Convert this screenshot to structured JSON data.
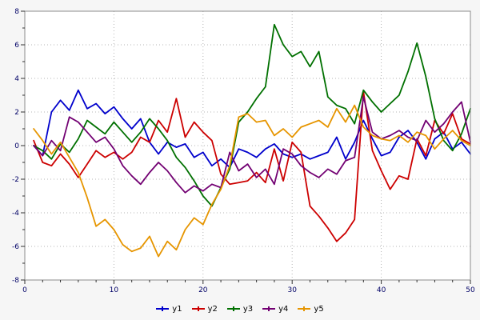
{
  "figure": {
    "background": "#f6f6f6",
    "plot_background": "#ffffff",
    "border_color": "#8c8c8c",
    "grid_color": "#b4b4b4",
    "tick_label_color": "#000066",
    "legend_text_color": "#000000"
  },
  "chart_data": {
    "type": "line",
    "title": "",
    "xlabel": "",
    "ylabel": "",
    "xlim": [
      0,
      50
    ],
    "ylim": [
      -8,
      8
    ],
    "x_ticks": [
      0,
      10,
      20,
      30,
      40,
      50
    ],
    "y_ticks": [
      8,
      6,
      4,
      2,
      0,
      -2,
      -4,
      -6,
      -8
    ],
    "x_minor_step": 2,
    "y_minor_step": 1,
    "grid": true,
    "legend_position": "bottom",
    "x": [
      1,
      2,
      3,
      4,
      5,
      6,
      7,
      8,
      9,
      10,
      11,
      12,
      13,
      14,
      15,
      16,
      17,
      18,
      19,
      20,
      21,
      22,
      23,
      24,
      25,
      26,
      27,
      28,
      29,
      30,
      31,
      32,
      33,
      34,
      35,
      36,
      37,
      38,
      39,
      40,
      41,
      42,
      43,
      44,
      45,
      46,
      47,
      48,
      49,
      50
    ],
    "series": [
      {
        "name": "y1",
        "color": "#0000cc",
        "values": [
          0.0,
          -0.6,
          2.0,
          2.7,
          2.1,
          3.3,
          2.2,
          2.5,
          1.9,
          2.3,
          1.6,
          1.0,
          1.6,
          0.2,
          -0.5,
          0.2,
          -0.1,
          0.1,
          -0.7,
          -0.4,
          -1.2,
          -0.8,
          -1.3,
          -0.2,
          -0.4,
          -0.7,
          -0.2,
          0.1,
          -0.5,
          -0.7,
          -0.5,
          -0.8,
          -0.6,
          -0.4,
          0.5,
          -0.8,
          0.2,
          1.5,
          0.4,
          -0.6,
          -0.4,
          0.5,
          0.9,
          0.2,
          -0.8,
          0.4,
          0.8,
          -0.2,
          0.2,
          -0.5
        ]
      },
      {
        "name": "y2",
        "color": "#cc0000",
        "values": [
          0.3,
          -1.0,
          -1.2,
          -0.5,
          -1.1,
          -1.9,
          -1.1,
          -0.3,
          -0.7,
          -0.4,
          -0.8,
          -0.4,
          0.5,
          0.2,
          1.5,
          0.8,
          2.8,
          0.5,
          1.4,
          0.8,
          0.3,
          -1.7,
          -2.3,
          -2.2,
          -2.1,
          -1.6,
          -2.2,
          -0.2,
          -2.1,
          0.2,
          -0.4,
          -3.6,
          -4.2,
          -4.9,
          -5.7,
          -5.2,
          -4.4,
          3.2,
          -0.3,
          -1.5,
          -2.6,
          -1.8,
          -2.0,
          0.4,
          -0.6,
          1.5,
          0.7,
          1.9,
          0.4,
          0.1
        ]
      },
      {
        "name": "y3",
        "color": "#007000",
        "values": [
          0.0,
          -0.3,
          -0.8,
          0.1,
          -0.4,
          0.4,
          1.5,
          1.1,
          0.7,
          1.4,
          0.8,
          0.2,
          0.8,
          1.6,
          1.0,
          0.3,
          -0.7,
          -1.3,
          -2.1,
          -3.0,
          -3.6,
          -2.5,
          -1.4,
          1.4,
          2.0,
          2.8,
          3.5,
          7.2,
          6.0,
          5.3,
          5.6,
          4.7,
          5.6,
          2.9,
          2.4,
          2.2,
          1.3,
          3.3,
          2.6,
          2.0,
          2.5,
          3.0,
          4.4,
          6.1,
          4.1,
          1.6,
          0.3,
          -0.3,
          0.7,
          2.2
        ]
      },
      {
        "name": "y4",
        "color": "#720072",
        "values": [
          0.0,
          -0.6,
          0.3,
          -0.3,
          1.7,
          1.4,
          0.8,
          0.2,
          0.5,
          -0.2,
          -1.2,
          -1.8,
          -2.3,
          -1.6,
          -1.0,
          -1.5,
          -2.2,
          -2.8,
          -2.4,
          -2.7,
          -2.3,
          -2.5,
          -0.4,
          -1.5,
          -1.1,
          -1.9,
          -1.4,
          -2.3,
          -0.2,
          -0.5,
          -1.2,
          -1.6,
          -1.9,
          -1.4,
          -1.7,
          -0.9,
          -0.7,
          2.9,
          0.8,
          0.4,
          0.6,
          0.9,
          0.5,
          0.3,
          1.5,
          0.8,
          1.3,
          2.0,
          2.6,
          0.2
        ]
      },
      {
        "name": "y5",
        "color": "#e69500",
        "values": [
          1.0,
          0.3,
          -0.5,
          0.2,
          -0.7,
          -1.6,
          -3.1,
          -4.8,
          -4.4,
          -5.0,
          -5.9,
          -6.3,
          -6.1,
          -5.4,
          -6.6,
          -5.7,
          -6.2,
          -5.0,
          -4.3,
          -4.7,
          -3.5,
          -2.6,
          -1.2,
          1.7,
          1.9,
          1.4,
          1.5,
          0.6,
          1.0,
          0.5,
          1.1,
          1.3,
          1.5,
          1.1,
          2.2,
          1.4,
          2.4,
          1.1,
          0.6,
          0.4,
          0.3,
          0.6,
          0.2,
          0.8,
          0.6,
          -0.2,
          0.4,
          0.9,
          0.3,
          0.0
        ]
      }
    ]
  }
}
